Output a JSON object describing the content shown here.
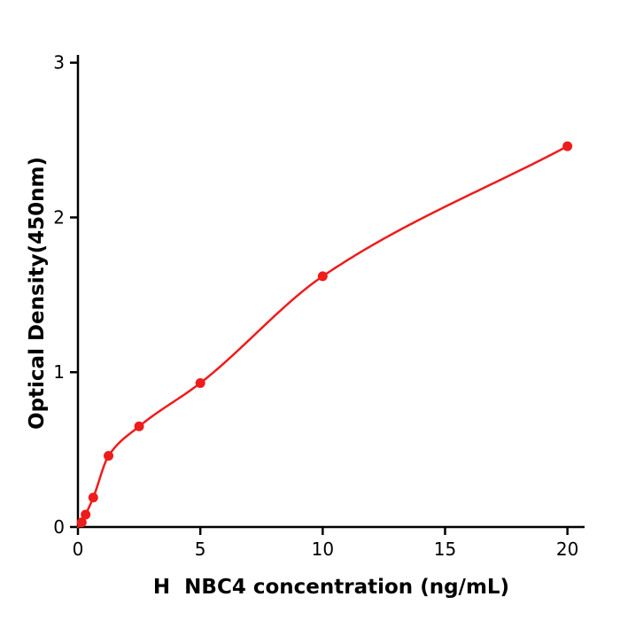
{
  "chart_data": {
    "type": "scatter",
    "title": "",
    "xlabel": "H  NBC4 concentration (ng/mL)",
    "ylabel": "Optical Density(450nm)",
    "xlim": [
      0,
      20.7
    ],
    "ylim": [
      0,
      3.05
    ],
    "xticks": [
      0,
      5,
      10,
      15,
      20
    ],
    "yticks": [
      0,
      1,
      2,
      3
    ],
    "grid": false,
    "legend": null,
    "points": {
      "x": [
        0.156,
        0.313,
        0.625,
        1.25,
        2.5,
        5,
        10,
        20
      ],
      "y": [
        0.03,
        0.08,
        0.19,
        0.46,
        0.65,
        0.93,
        1.62,
        2.46
      ]
    },
    "fit_curve": {
      "style": "smooth-through-points",
      "x_start": 0,
      "y_start": 0,
      "x_end": 20
    },
    "colors": {
      "series": "#ee1c1c",
      "axis": "#000000",
      "background": "#ffffff"
    }
  }
}
